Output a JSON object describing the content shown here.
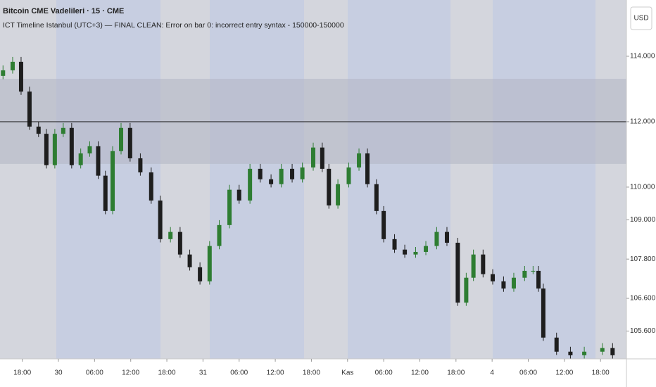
{
  "chart_data": {
    "type": "candlestick",
    "title": "Bitcoin CME Vadelileri · 15 · CME",
    "subtitle": "ICT Timeline Istanbul (UTC+3) — FINAL CLEAN: Error on bar 0: incorrect entry syntax - 150000-150000",
    "currency": "USD",
    "x": [
      -3.2,
      -1.6,
      -0.2,
      1.2,
      2.7,
      4.0,
      5.4,
      6.8,
      8.2,
      9.7,
      11.2,
      12.6,
      13.8,
      15.0,
      16.4,
      17.9,
      19.6,
      21.4,
      22.9,
      24.6,
      26.2,
      27.8,
      29.5,
      31.1,
      32.7,
      34.4,
      36.0,
      37.8,
      39.5,
      41.3,
      43.0,
      44.8,
      46.5,
      48.3,
      49.8,
      50.9,
      52.4,
      54.2,
      55.9,
      57.3,
      58.8,
      60.0,
      61.8,
      63.5,
      65.3,
      67.0,
      68.8,
      70.5,
      72.3,
      73.7,
      74.9,
      76.5,
      78.1,
      79.9,
      81.6,
      83.4,
      84.8,
      85.7,
      86.5,
      88.7,
      91.0,
      93.3,
      96.3,
      98.0
    ],
    "open": [
      113.4,
      113.57,
      113.83,
      112.92,
      111.85,
      111.63,
      110.67,
      111.63,
      111.81,
      110.67,
      111.03,
      111.25,
      110.35,
      109.27,
      111.1,
      111.81,
      110.88,
      110.45,
      109.59,
      108.41,
      108.63,
      107.94,
      107.55,
      107.12,
      108.2,
      108.84,
      109.92,
      109.59,
      110.56,
      110.24,
      110.09,
      110.56,
      110.24,
      110.6,
      111.21,
      110.56,
      109.44,
      110.09,
      110.6,
      111.03,
      110.09,
      109.27,
      108.41,
      108.09,
      107.94,
      108.02,
      108.2,
      108.63,
      108.3,
      106.47,
      107.23,
      107.94,
      107.34,
      107.12,
      106.9,
      107.23,
      107.44,
      107.44,
      106.9,
      105.4,
      104.97,
      104.86,
      104.97,
      105.08
    ],
    "high": [
      113.72,
      113.98,
      113.98,
      113.07,
      112.0,
      111.78,
      111.78,
      111.96,
      111.96,
      111.18,
      111.4,
      111.4,
      110.5,
      111.25,
      111.96,
      111.96,
      111.03,
      110.6,
      109.74,
      108.78,
      108.78,
      108.09,
      107.7,
      108.35,
      108.99,
      110.07,
      110.07,
      110.71,
      110.71,
      110.39,
      110.71,
      110.71,
      110.75,
      111.36,
      111.36,
      110.71,
      110.24,
      110.75,
      111.18,
      111.18,
      110.24,
      109.42,
      108.56,
      108.24,
      108.17,
      108.35,
      108.78,
      108.78,
      108.45,
      107.38,
      108.09,
      108.09,
      107.49,
      107.27,
      107.38,
      107.59,
      107.59,
      107.59,
      107.05,
      105.55,
      105.12,
      105.12,
      105.23,
      105.23
    ],
    "low": [
      113.3,
      113.47,
      112.82,
      111.75,
      111.53,
      110.57,
      110.57,
      111.53,
      110.57,
      110.57,
      110.93,
      110.25,
      109.17,
      109.17,
      111.0,
      110.78,
      110.35,
      109.49,
      108.31,
      108.31,
      107.84,
      107.45,
      107.02,
      107.02,
      108.1,
      108.74,
      109.49,
      109.49,
      110.14,
      109.99,
      109.99,
      110.14,
      110.14,
      110.5,
      110.46,
      109.34,
      109.34,
      109.99,
      110.5,
      109.99,
      109.17,
      108.31,
      107.99,
      107.84,
      107.84,
      107.92,
      108.1,
      108.2,
      106.37,
      106.37,
      107.13,
      107.24,
      107.02,
      106.8,
      106.8,
      107.13,
      107.34,
      106.8,
      105.3,
      104.87,
      104.76,
      104.76,
      104.87,
      104.76
    ],
    "close": [
      113.57,
      113.83,
      112.92,
      111.85,
      111.63,
      110.67,
      111.63,
      111.81,
      110.67,
      111.03,
      111.25,
      110.35,
      109.27,
      111.1,
      111.81,
      110.88,
      110.45,
      109.59,
      108.41,
      108.63,
      107.94,
      107.55,
      107.12,
      108.2,
      108.84,
      109.92,
      109.59,
      110.56,
      110.24,
      110.09,
      110.56,
      110.24,
      110.6,
      111.21,
      110.56,
      109.44,
      110.09,
      110.6,
      111.03,
      110.09,
      109.27,
      108.41,
      108.09,
      107.94,
      108.02,
      108.2,
      108.63,
      108.3,
      106.47,
      107.23,
      107.94,
      107.34,
      107.12,
      106.9,
      107.23,
      107.44,
      107.44,
      106.9,
      105.4,
      104.97,
      104.86,
      104.97,
      105.08,
      104.86
    ],
    "up_color": "#2e7d32",
    "down_color": "#1e1e1e",
    "zone": [
      110.71,
      113.31
    ],
    "zone_color": "#b4b8c6",
    "price_line": 112,
    "price_line_color": "#111111",
    "xlim": [
      -3.7,
      100.3
    ],
    "xticks": [
      {
        "value": 0,
        "label": "18:00"
      },
      {
        "value": 6,
        "label": "30"
      },
      {
        "value": 12,
        "label": "06:00"
      },
      {
        "value": 18,
        "label": "12:00"
      },
      {
        "value": 24,
        "label": "18:00"
      },
      {
        "value": 30,
        "label": "31"
      },
      {
        "value": 36,
        "label": "06:00"
      },
      {
        "value": 42,
        "label": "12:00"
      },
      {
        "value": 48,
        "label": "18:00"
      },
      {
        "value": 54,
        "label": "Kas"
      },
      {
        "value": 60,
        "label": "06:00"
      },
      {
        "value": 66,
        "label": "12:00"
      },
      {
        "value": 72,
        "label": "18:00"
      },
      {
        "value": 78,
        "label": "4"
      },
      {
        "value": 84,
        "label": "06:00"
      },
      {
        "value": 90,
        "label": "12:00"
      },
      {
        "value": 96,
        "label": "18:00"
      }
    ],
    "ylim": [
      104.75,
      115.72
    ],
    "yticks": [
      {
        "value": 114,
        "label": "114.000"
      },
      {
        "value": 112,
        "label": "112.000"
      },
      {
        "value": 110,
        "label": "110.000"
      },
      {
        "value": 109,
        "label": "109.000"
      },
      {
        "value": 107.8,
        "label": "107.800"
      },
      {
        "value": 106.6,
        "label": "106.600"
      },
      {
        "value": 105.6,
        "label": "105.600"
      }
    ]
  }
}
